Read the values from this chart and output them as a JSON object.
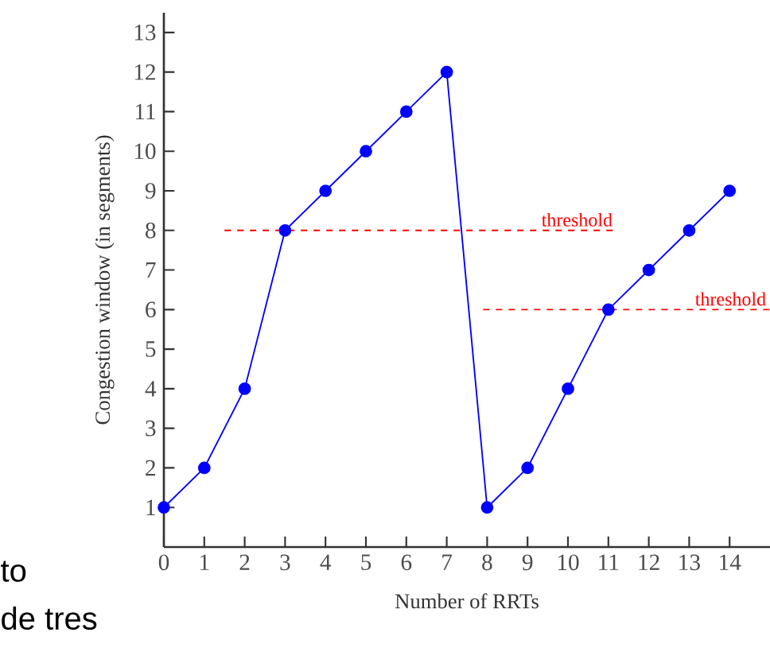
{
  "chart_data": {
    "type": "line",
    "xlabel": "Number of RRTs",
    "ylabel": "Congestion window (in segments)",
    "x": [
      0,
      1,
      2,
      3,
      4,
      5,
      6,
      7,
      8,
      9,
      10,
      11,
      12,
      13,
      14
    ],
    "series": [
      {
        "color": "#0000ff",
        "marker": "circle",
        "values": [
          1,
          2,
          4,
          8,
          9,
          10,
          11,
          12,
          1,
          2,
          4,
          6,
          7,
          8,
          9
        ]
      },
      {
        "name": "threshold",
        "color": "#ff0000",
        "line_style": "dashed",
        "marker": "none",
        "x": [
          1.5,
          11.2
        ],
        "values": [
          8,
          8
        ]
      },
      {
        "name": "threshold",
        "color": "#ff0000",
        "line_style": "dashed",
        "marker": "none",
        "x": [
          7.9,
          15
        ],
        "values": [
          6,
          6
        ]
      }
    ],
    "xlim": [
      0,
      15
    ],
    "ylim": [
      0,
      13.5
    ],
    "xticks": [
      0,
      1,
      2,
      3,
      4,
      5,
      6,
      7,
      8,
      9,
      10,
      11,
      12,
      13,
      14
    ],
    "yticks": [
      1,
      2,
      3,
      4,
      5,
      6,
      7,
      8,
      9,
      10,
      11,
      12,
      13
    ],
    "annotations": [
      "to",
      "de tres"
    ]
  }
}
